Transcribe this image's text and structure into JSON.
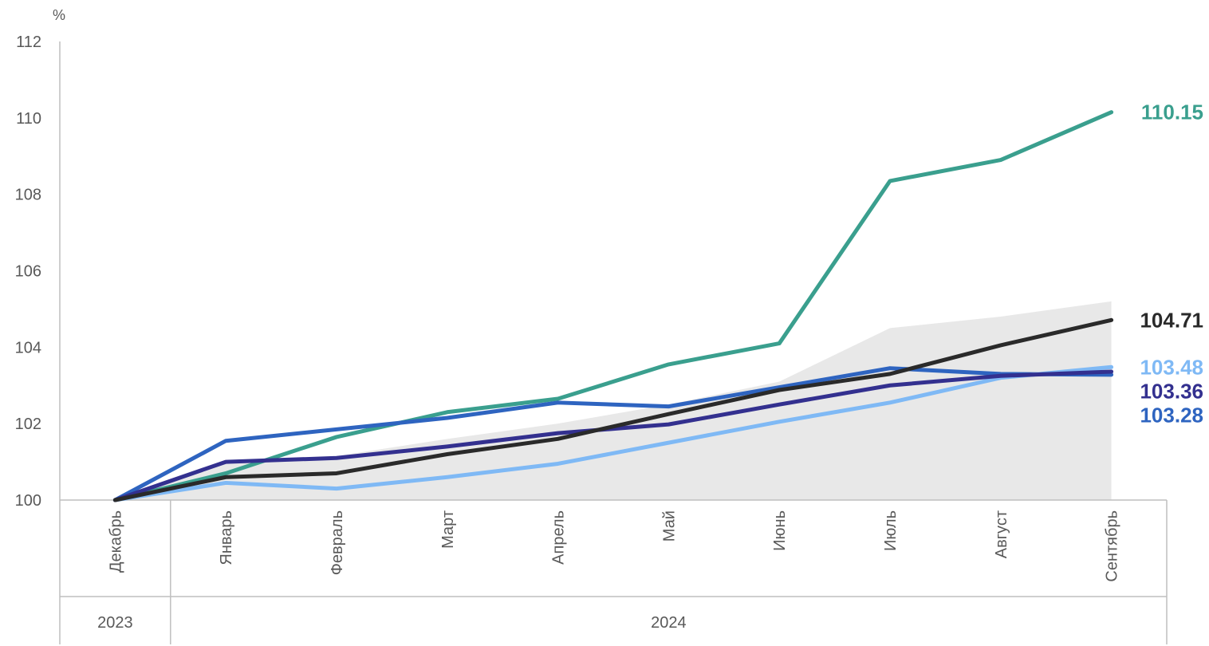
{
  "chart_data": {
    "type": "line",
    "unit_label": "%",
    "ylim": [
      100,
      112
    ],
    "yticks": [
      "100",
      "102",
      "104",
      "106",
      "108",
      "110",
      "112"
    ],
    "categories": [
      "Декабрь",
      "Январь",
      "Февраль",
      "Март",
      "Апрель",
      "Май",
      "Июнь",
      "Июль",
      "Август",
      "Сентябрь"
    ],
    "year_groups": [
      {
        "label": "2023",
        "from": 0,
        "to": 0
      },
      {
        "label": "2024",
        "from": 1,
        "to": 9
      }
    ],
    "band": {
      "color": "#e8e8e8",
      "upper": [
        100,
        101.0,
        101.15,
        101.6,
        102.0,
        102.5,
        103.1,
        104.5,
        104.8,
        105.2
      ],
      "lower": [
        100,
        100,
        100,
        100,
        100,
        100,
        100,
        100,
        100,
        100
      ]
    },
    "series": [
      {
        "color": "#3a9f8e",
        "values": [
          100,
          100.7,
          101.65,
          102.3,
          102.65,
          103.55,
          104.1,
          108.35,
          108.9,
          110.15
        ],
        "end_label": "110.15"
      },
      {
        "color": "#2e64c0",
        "values": [
          100,
          101.55,
          101.85,
          102.15,
          102.55,
          102.45,
          102.95,
          103.45,
          103.3,
          103.28
        ],
        "end_label": "103.28"
      },
      {
        "color": "#7fb9f5",
        "values": [
          100,
          100.45,
          100.3,
          100.6,
          100.95,
          101.5,
          102.05,
          102.55,
          103.2,
          103.48
        ],
        "end_label": "103.48"
      },
      {
        "color": "#33308f",
        "values": [
          100,
          101.0,
          101.1,
          101.4,
          101.75,
          101.98,
          102.5,
          103.0,
          103.25,
          103.36
        ],
        "end_label": "103.36"
      },
      {
        "color": "#2a2a2a",
        "values": [
          100,
          100.6,
          100.7,
          101.2,
          101.6,
          102.25,
          102.88,
          103.3,
          104.05,
          104.71
        ],
        "end_label": "104.71"
      }
    ]
  }
}
